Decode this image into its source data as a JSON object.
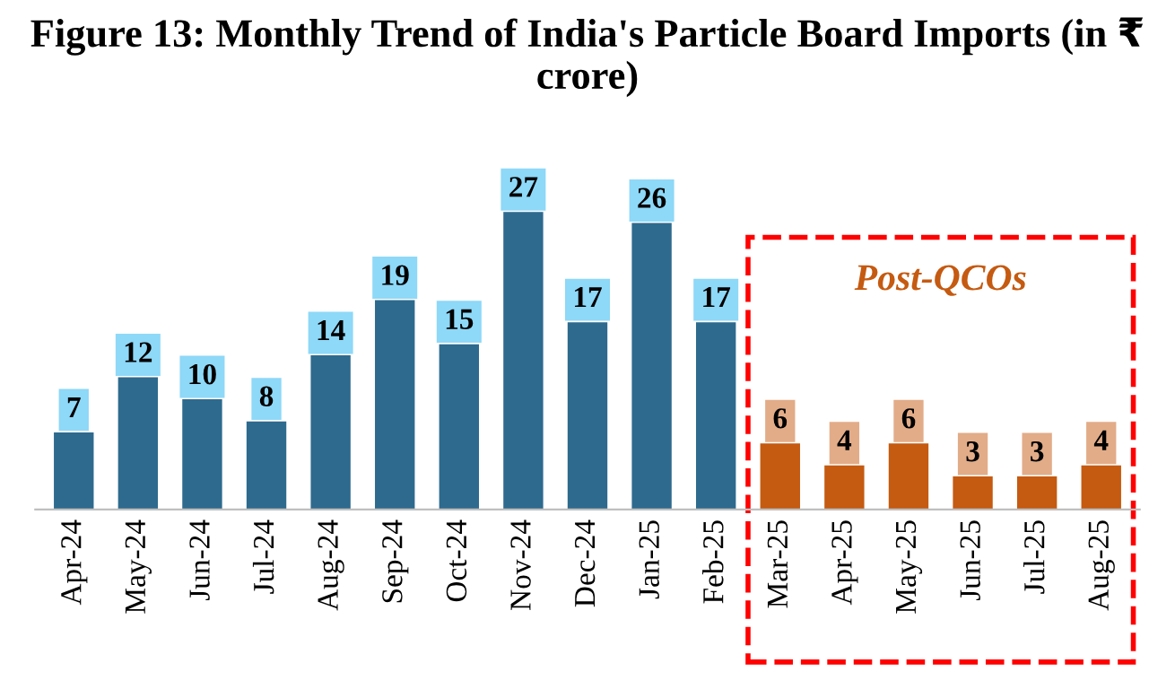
{
  "chart_data": {
    "type": "bar",
    "title": "Figure 13: Monthly Trend of India's Particle Board Imports (in ₹ crore)",
    "categories": [
      "Apr-24",
      "May-24",
      "Jun-24",
      "Jul-24",
      "Aug-24",
      "Sep-24",
      "Oct-24",
      "Nov-24",
      "Dec-24",
      "Jan-25",
      "Feb-25",
      "Mar-25",
      "Apr-25",
      "May-25",
      "Jun-25",
      "Jul-25",
      "Aug-25"
    ],
    "values": [
      7,
      12,
      10,
      8,
      14,
      19,
      15,
      27,
      17,
      26,
      17,
      6,
      4,
      6,
      3,
      3,
      4
    ],
    "colors": [
      "#2e6a8e",
      "#2e6a8e",
      "#2e6a8e",
      "#2e6a8e",
      "#2e6a8e",
      "#2e6a8e",
      "#2e6a8e",
      "#2e6a8e",
      "#2e6a8e",
      "#2e6a8e",
      "#2e6a8e",
      "#c55a11",
      "#c55a11",
      "#c55a11",
      "#c55a11",
      "#c55a11",
      "#c55a11"
    ],
    "data_labels": true,
    "annotations": [
      "Post-QCOs"
    ],
    "grid": false,
    "legend": false
  }
}
